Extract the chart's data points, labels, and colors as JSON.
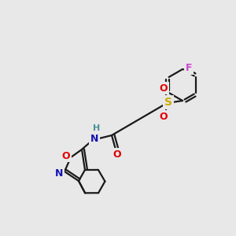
{
  "background_color": "#e8e8e8",
  "bond_color": "#1a1a1a",
  "atom_colors": {
    "N": "#1414b4",
    "O": "#e00000",
    "S": "#ccaa00",
    "F": "#cc44cc",
    "H": "#4a9090",
    "C": "#1a1a1a"
  },
  "figsize": [
    3.0,
    3.0
  ],
  "dpi": 100
}
